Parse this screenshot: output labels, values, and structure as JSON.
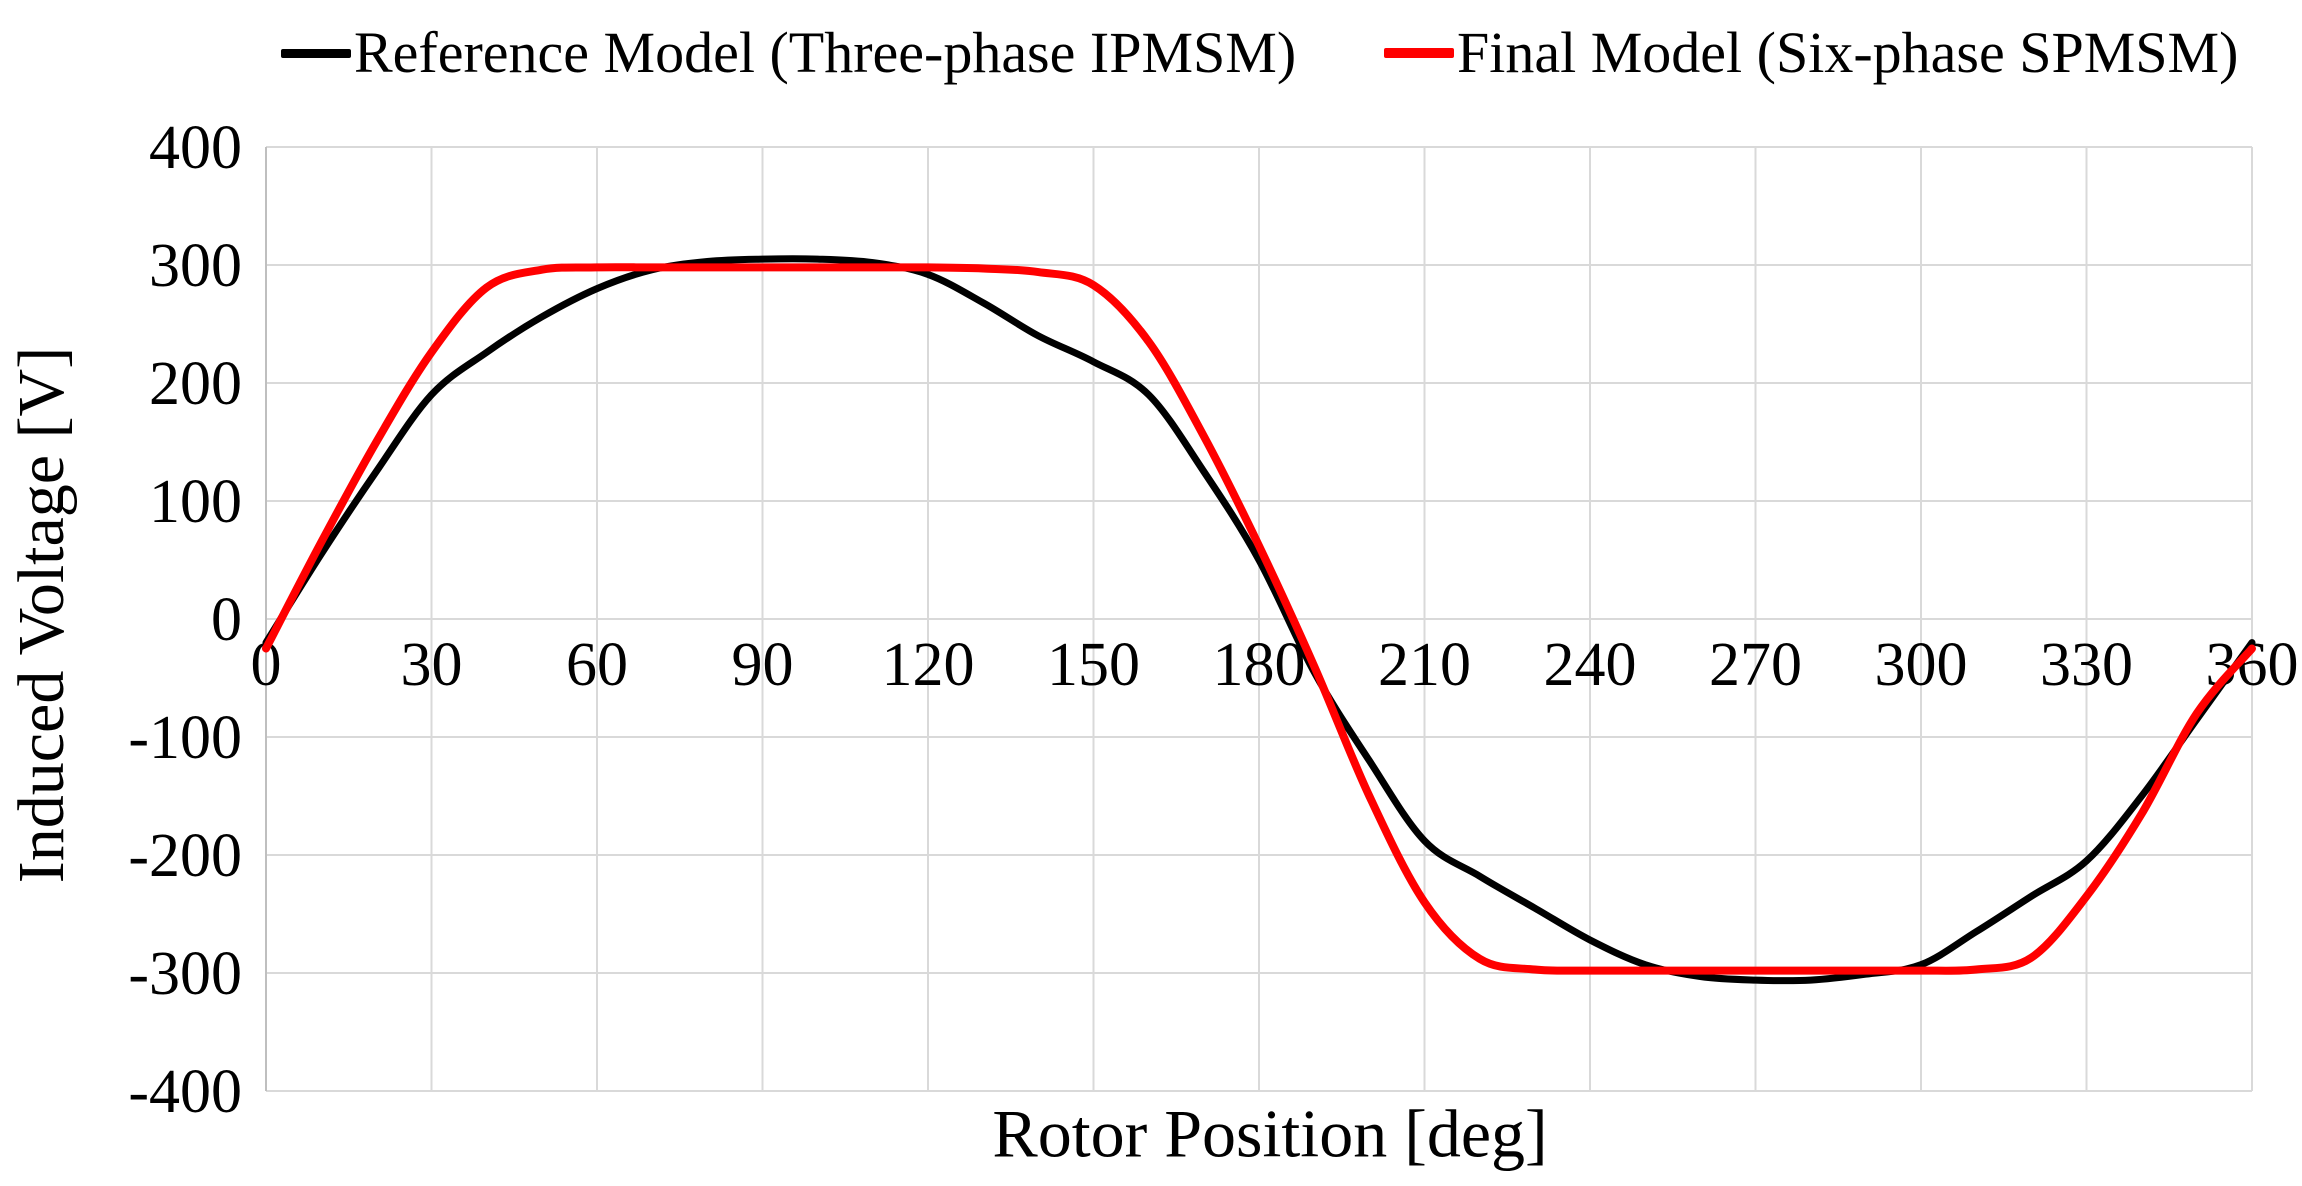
{
  "legend": {
    "position": "top"
  },
  "chart_data": {
    "type": "line",
    "title": "",
    "xlabel": "Rotor Position [deg]",
    "ylabel": "Induced Voltage [V]",
    "xlim": [
      0,
      360
    ],
    "ylim": [
      -400,
      400
    ],
    "x_ticks": [
      0,
      30,
      60,
      90,
      120,
      150,
      180,
      210,
      240,
      270,
      300,
      330,
      360
    ],
    "y_ticks": [
      400,
      300,
      200,
      100,
      0,
      -100,
      -200,
      -300,
      -400
    ],
    "grid": true,
    "grid_color": "#D9D9D9",
    "axis_line_color": "#BFBFBF",
    "legend_position": "top",
    "x": [
      0,
      10,
      20,
      30,
      40,
      50,
      60,
      70,
      80,
      90,
      100,
      110,
      120,
      130,
      140,
      150,
      160,
      170,
      180,
      190,
      200,
      210,
      220,
      230,
      240,
      250,
      260,
      270,
      280,
      290,
      300,
      310,
      320,
      330,
      340,
      350,
      360
    ],
    "series": [
      {
        "name": "Reference Model (Three-phase IPMSM)",
        "color": "#000000",
        "stroke_width": 7,
        "values": [
          -20,
          55,
          125,
          190,
          226,
          256,
          280,
          296,
          303,
          305,
          305,
          302,
          292,
          268,
          240,
          218,
          190,
          125,
          50,
          -45,
          -120,
          -188,
          -218,
          -245,
          -272,
          -293,
          -303,
          -306,
          -306,
          -301,
          -293,
          -265,
          -235,
          -205,
          -150,
          -85,
          -20
        ]
      },
      {
        "name": "Final Model (Six-phase SPMSM)",
        "color": "#FF0000",
        "stroke_width": 8,
        "values": [
          -25,
          65,
          150,
          226,
          281,
          296,
          298,
          298,
          298,
          298,
          298,
          298,
          298,
          297,
          294,
          283,
          235,
          155,
          62,
          -40,
          -150,
          -240,
          -288,
          -297,
          -298,
          -298,
          -298,
          -298,
          -298,
          -298,
          -298,
          -297,
          -287,
          -235,
          -165,
          -80,
          -25
        ]
      }
    ]
  }
}
